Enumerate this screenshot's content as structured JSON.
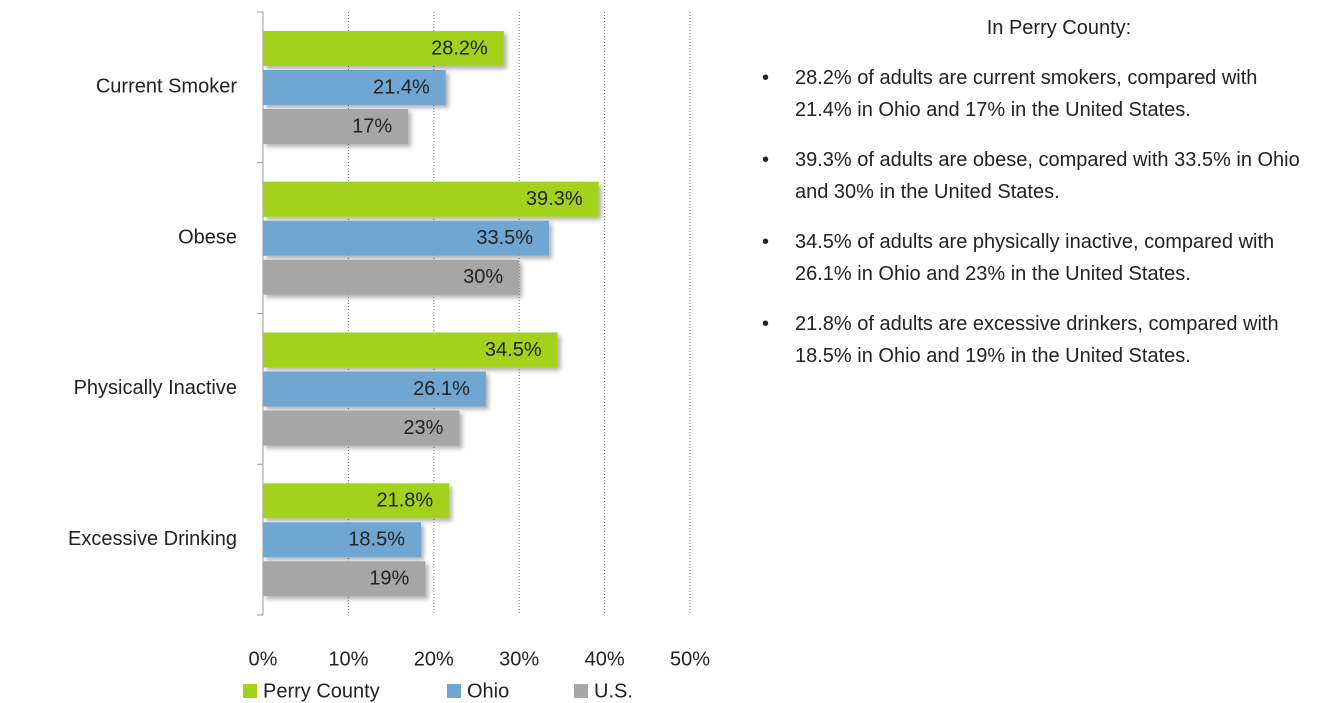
{
  "chart_data": {
    "type": "bar",
    "orientation": "horizontal",
    "categories": [
      "Current Smoker",
      "Obese",
      "Physically Inactive",
      "Excessive Drinking"
    ],
    "series": [
      {
        "name": "Perry County",
        "color": "#a2d21c",
        "values": [
          28.2,
          39.3,
          34.5,
          21.8
        ],
        "value_labels": [
          "28.2%",
          "39.3%",
          "34.5%",
          "21.8%"
        ]
      },
      {
        "name": "Ohio",
        "color": "#70a7d2",
        "values": [
          21.4,
          33.5,
          26.1,
          18.5
        ],
        "value_labels": [
          "21.4%",
          "33.5%",
          "26.1%",
          "18.5%"
        ]
      },
      {
        "name": "U.S.",
        "color": "#a6a6a6",
        "values": [
          17,
          30,
          23,
          19
        ],
        "value_labels": [
          "17%",
          "30%",
          "23%",
          "19%"
        ]
      }
    ],
    "xlim": [
      0,
      50
    ],
    "xticks": [
      {
        "value": 0,
        "label": "0%"
      },
      {
        "value": 10,
        "label": "10%"
      },
      {
        "value": 20,
        "label": "20%"
      },
      {
        "value": 30,
        "label": "30%"
      },
      {
        "value": 40,
        "label": "40%"
      },
      {
        "value": 50,
        "label": "50%"
      }
    ],
    "grid": true,
    "legend": "bottom"
  },
  "notes": {
    "heading": "In Perry County:",
    "items": [
      "28.2% of adults are current smokers, compared with 21.4% in Ohio and 17% in the United States.",
      "39.3% of adults are obese, compared with 33.5% in Ohio and 30% in the United States.",
      "34.5% of adults are physically inactive, compared with 26.1% in Ohio and 23% in the United States.",
      "21.8% of adults are excessive drinkers, compared with 18.5% in Ohio and 19% in the United States."
    ]
  }
}
